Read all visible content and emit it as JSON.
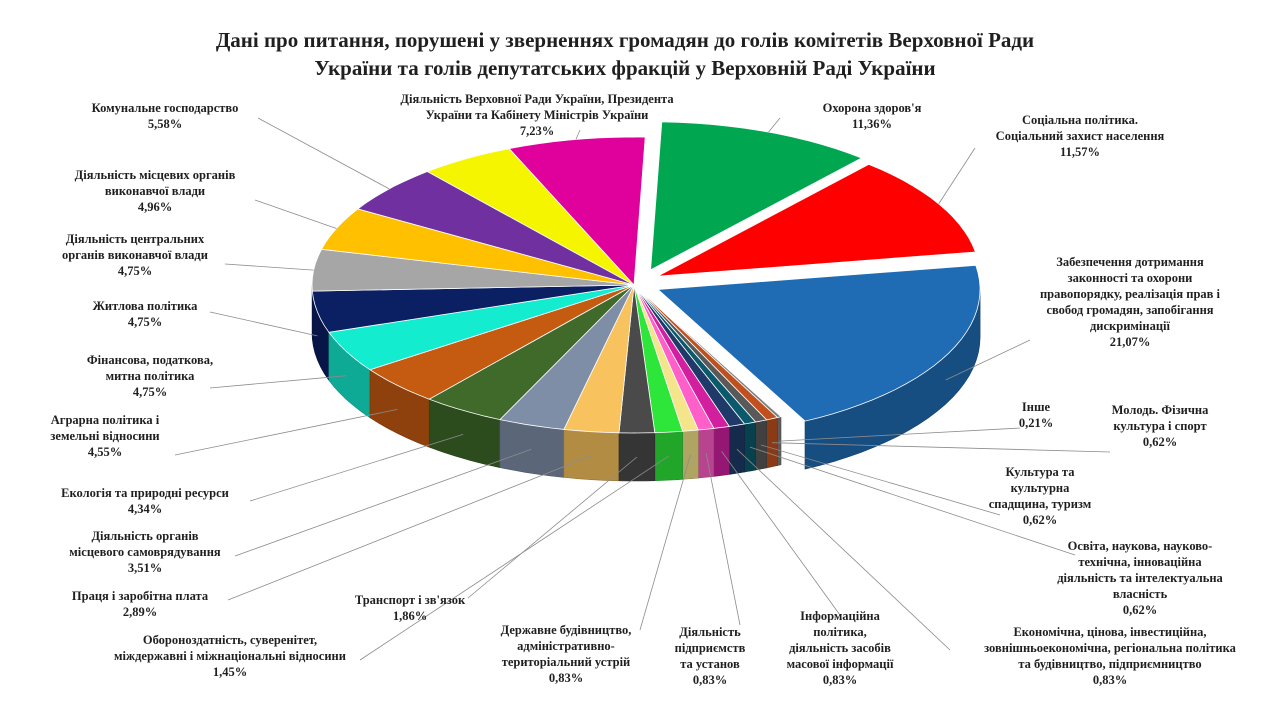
{
  "chart_data": {
    "type": "pie",
    "title_lines": [
      "Дані про питання, порушені у зверненнях громадян до голів комітетів Верховної Ради",
      "України та голів депутатських фракцій у Верховній Раді України"
    ],
    "slices": [
      {
        "label_lines": [
          "Охорона здоров'я"
        ],
        "value": 11.36,
        "value_label": "11,36%",
        "color": "#00a650"
      },
      {
        "label_lines": [
          "Соціальна політика.",
          "Соціальний захист населення"
        ],
        "value": 11.57,
        "value_label": "11,57%",
        "color": "#ff0000"
      },
      {
        "label_lines": [
          "Забезпечення дотримання",
          "законності та охорони",
          "правопорядку, реалізація прав і",
          "свобод громадян, запобігання",
          "дискримінації"
        ],
        "value": 21.07,
        "value_label": "21,07%",
        "color": "#1f6cb5"
      },
      {
        "label_lines": [
          "Інше"
        ],
        "value": 0.21,
        "value_label": "0,21%",
        "color": "#7f7f7f"
      },
      {
        "label_lines": [
          "Молодь. Фізична",
          "культура і спорт"
        ],
        "value": 0.62,
        "value_label": "0,62%",
        "color": "#c0501d"
      },
      {
        "label_lines": [
          "Культура та",
          "культурна",
          "спадщина, туризм"
        ],
        "value": 0.62,
        "value_label": "0,62%",
        "color": "#595959"
      },
      {
        "label_lines": [
          "Освіта, наукова, науково-",
          "технічна, інноваційна",
          "діяльність та інтелектуальна",
          "власність"
        ],
        "value": 0.62,
        "value_label": "0,62%",
        "color": "#0a5a6b"
      },
      {
        "label_lines": [
          "Економічна, цінова, інвестиційна,",
          "зовнішньоекономічна, регіональна політика",
          "та будівництво, підприємництво"
        ],
        "value": 0.83,
        "value_label": "0,83%",
        "color": "#1f3a68"
      },
      {
        "label_lines": [
          "Інформаційна",
          "політика,",
          "діяльність засобів",
          "масової інформації"
        ],
        "value": 0.83,
        "value_label": "0,83%",
        "color": "#d11fa0"
      },
      {
        "label_lines": [
          "Діяльність",
          "підприємств",
          "та установ"
        ],
        "value": 0.83,
        "value_label": "0,83%",
        "color": "#ff5fc8"
      },
      {
        "label_lines": [
          "Державне будівництво,",
          "адміністративно-",
          "територіальний устрій"
        ],
        "value": 0.83,
        "value_label": "0,83%",
        "color": "#f4e48a"
      },
      {
        "label_lines": [
          "Оборонoздатність, суверенітет,",
          "міждержавні і міжнаціональні відносини"
        ],
        "value": 1.45,
        "value_label": "1,45%",
        "color": "#2ee63a"
      },
      {
        "label_lines": [
          "Транспорт і зв'язок"
        ],
        "value": 1.86,
        "value_label": "1,86%",
        "color": "#4a4a4a"
      },
      {
        "label_lines": [
          "Праця і заробітна плата"
        ],
        "value": 2.89,
        "value_label": "2,89%",
        "color": "#f8c25f"
      },
      {
        "label_lines": [
          "Діяльність органів",
          "місцевого самоврядування"
        ],
        "value": 3.51,
        "value_label": "3,51%",
        "color": "#7e8ea6"
      },
      {
        "label_lines": [
          "Екологія та природні ресурси"
        ],
        "value": 4.34,
        "value_label": "4,34%",
        "color": "#3f6a2a"
      },
      {
        "label_lines": [
          "Аграрна політика і",
          "земельні відносини"
        ],
        "value": 4.55,
        "value_label": "4,55%",
        "color": "#c55a11"
      },
      {
        "label_lines": [
          "Фінансова, податкова,",
          "митна політика"
        ],
        "value": 4.75,
        "value_label": "4,75%",
        "color": "#14ecd0"
      },
      {
        "label_lines": [
          "Житлова політика"
        ],
        "value": 4.75,
        "value_label": "4,75%",
        "color": "#0b1f63"
      },
      {
        "label_lines": [
          "Діяльність центральних",
          "органів виконавчої влади"
        ],
        "value": 4.75,
        "value_label": "4,75%",
        "color": "#a6a6a6"
      },
      {
        "label_lines": [
          "Діяльність місцевих органів",
          "виконавчої влади"
        ],
        "value": 4.96,
        "value_label": "4,96%",
        "color": "#ffc000"
      },
      {
        "label_lines": [
          "Комунальне господарство"
        ],
        "value": 5.58,
        "value_label": "5,58%",
        "color": "#7030a0"
      },
      {
        "label_lines": [
          "Діяльність Верховної Ради України, Президента",
          "України та Кабінету Міністрів України"
        ],
        "value": 7.23,
        "value_label": "7,23%",
        "color": "#e0009b"
      }
    ],
    "unlabeled_slice": {
      "value": 5.0,
      "color": "#f5f500"
    }
  }
}
